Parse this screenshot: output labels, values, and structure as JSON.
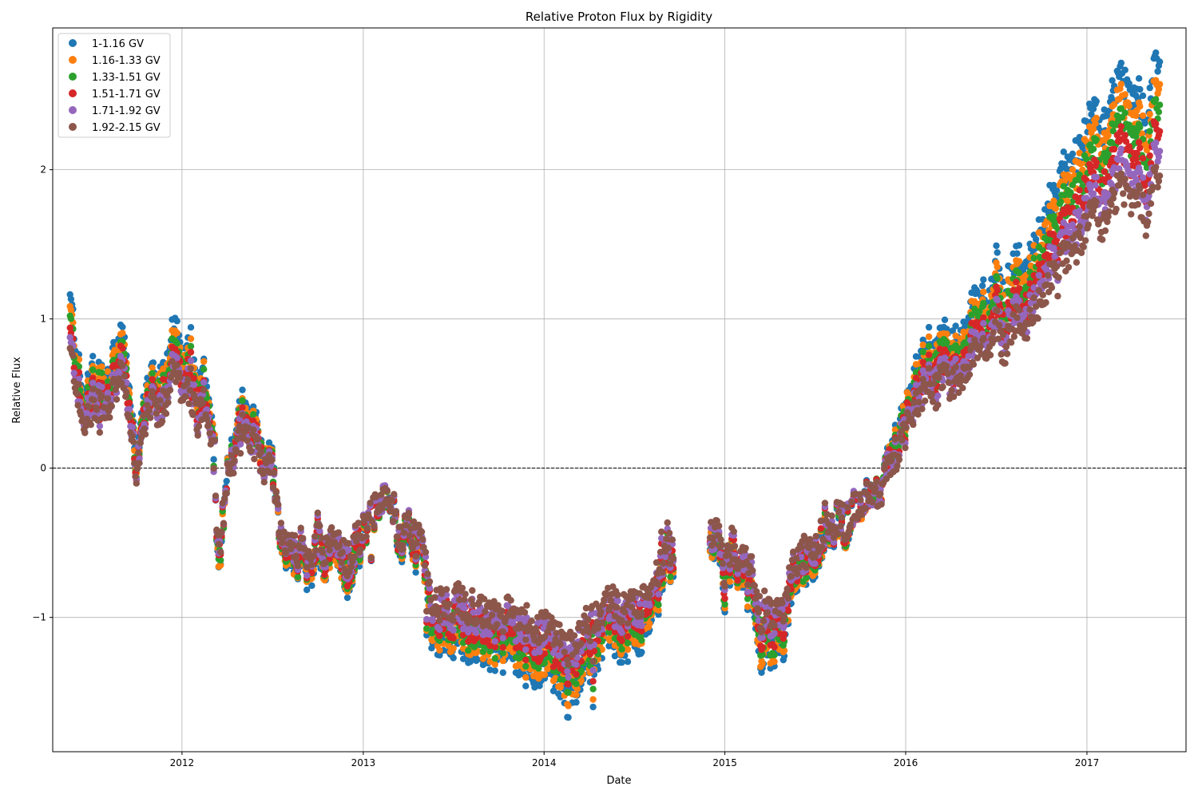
{
  "chart_data": {
    "type": "scatter",
    "title": "Relative Proton Flux by Rigidity",
    "xlabel": "Date",
    "ylabel": "Relative Flux",
    "x_axis": "date",
    "xlim": [
      "2011-04-15",
      "2017-07-20"
    ],
    "ylim": [
      -1.9,
      2.95
    ],
    "x_ticks": [
      "2012",
      "2013",
      "2014",
      "2015",
      "2016",
      "2017"
    ],
    "x_tick_dates": [
      "2012-01-01",
      "2013-01-01",
      "2014-01-01",
      "2015-01-01",
      "2016-01-01",
      "2017-01-01"
    ],
    "y_ticks": [
      -1,
      0,
      1,
      2
    ],
    "y_tick_labels": [
      "−1",
      "0",
      "1",
      "2"
    ],
    "grid": true,
    "reference_line": {
      "y": 0,
      "style": "dashed"
    },
    "legend_position": "top-left",
    "series": [
      {
        "name": "1-1.16 GV",
        "color": "#1f77b4",
        "offset": 0.04
      },
      {
        "name": "1.16-1.33 GV",
        "color": "#ff7f0e",
        "offset": 0.02
      },
      {
        "name": "1.33-1.51 GV",
        "color": "#2ca02c",
        "offset": 0.01
      },
      {
        "name": "1.51-1.71 GV",
        "color": "#d62728",
        "offset": -0.005
      },
      {
        "name": "1.71-1.92 GV",
        "color": "#9467bd",
        "offset": -0.015
      },
      {
        "name": "1.92-2.15 GV",
        "color": "#8c564b",
        "offset": -0.025
      }
    ],
    "common_trend": [
      [
        "2011-05-20",
        0.95
      ],
      [
        "2011-06-01",
        0.7
      ],
      [
        "2011-06-15",
        0.35
      ],
      [
        "2011-07-01",
        0.5
      ],
      [
        "2011-07-15",
        0.55
      ],
      [
        "2011-08-01",
        0.45
      ],
      [
        "2011-08-15",
        0.6
      ],
      [
        "2011-09-01",
        0.75
      ],
      [
        "2011-09-15",
        0.5
      ],
      [
        "2011-10-01",
        0.0
      ],
      [
        "2011-10-15",
        0.3
      ],
      [
        "2011-11-01",
        0.5
      ],
      [
        "2011-11-15",
        0.45
      ],
      [
        "2011-12-01",
        0.6
      ],
      [
        "2011-12-15",
        0.8
      ],
      [
        "2012-01-01",
        0.6
      ],
      [
        "2012-01-15",
        0.7
      ],
      [
        "2012-02-01",
        0.4
      ],
      [
        "2012-02-15",
        0.55
      ],
      [
        "2012-03-01",
        0.3
      ],
      [
        "2012-03-15",
        -0.7
      ],
      [
        "2012-04-01",
        0.0
      ],
      [
        "2012-04-15",
        0.1
      ],
      [
        "2012-05-01",
        0.35
      ],
      [
        "2012-05-15",
        0.3
      ],
      [
        "2012-06-01",
        0.2
      ],
      [
        "2012-06-15",
        0.0
      ],
      [
        "2012-07-01",
        0.05
      ],
      [
        "2012-07-15",
        -0.4
      ],
      [
        "2012-08-01",
        -0.6
      ],
      [
        "2012-08-15",
        -0.65
      ],
      [
        "2012-09-01",
        -0.55
      ],
      [
        "2012-09-15",
        -0.7
      ],
      [
        "2012-10-01",
        -0.5
      ],
      [
        "2012-10-15",
        -0.6
      ],
      [
        "2012-11-01",
        -0.55
      ],
      [
        "2012-11-15",
        -0.6
      ],
      [
        "2012-12-01",
        -0.7
      ],
      [
        "2012-12-15",
        -0.55
      ],
      [
        "2013-01-01",
        -0.45
      ],
      [
        "2013-01-15",
        -0.3
      ],
      [
        "2013-02-01",
        -0.3
      ],
      [
        "2013-02-15",
        -0.2
      ],
      [
        "2013-03-01",
        -0.25
      ],
      [
        "2013-03-15",
        -0.5
      ],
      [
        "2013-04-01",
        -0.4
      ],
      [
        "2013-04-15",
        -0.5
      ],
      [
        "2013-05-01",
        -0.55
      ],
      [
        "2013-05-15",
        -0.95
      ],
      [
        "2013-06-01",
        -1.05
      ],
      [
        "2013-06-15",
        -1.0
      ],
      [
        "2013-07-01",
        -1.05
      ],
      [
        "2013-07-15",
        -1.0
      ],
      [
        "2013-08-01",
        -1.1
      ],
      [
        "2013-08-15",
        -1.05
      ],
      [
        "2013-09-01",
        -1.15
      ],
      [
        "2013-09-15",
        -1.1
      ],
      [
        "2013-10-01",
        -1.15
      ],
      [
        "2013-10-15",
        -1.1
      ],
      [
        "2013-11-01",
        -1.15
      ],
      [
        "2013-11-15",
        -1.2
      ],
      [
        "2013-12-01",
        -1.2
      ],
      [
        "2013-12-15",
        -1.25
      ],
      [
        "2014-01-01",
        -1.2
      ],
      [
        "2014-01-15",
        -1.25
      ],
      [
        "2014-02-01",
        -1.3
      ],
      [
        "2014-02-15",
        -1.4
      ],
      [
        "2014-03-01",
        -1.35
      ],
      [
        "2014-03-15",
        -1.25
      ],
      [
        "2014-04-01",
        -1.2
      ],
      [
        "2014-04-15",
        -1.15
      ],
      [
        "2014-05-01",
        -1.05
      ],
      [
        "2014-05-15",
        -1.0
      ],
      [
        "2014-06-01",
        -1.05
      ],
      [
        "2014-06-15",
        -1.1
      ],
      [
        "2014-07-01",
        -1.0
      ],
      [
        "2014-07-15",
        -1.05
      ],
      [
        "2014-08-01",
        -0.95
      ],
      [
        "2014-08-15",
        -0.85
      ],
      [
        "2014-09-01",
        -0.65
      ],
      [
        "2014-09-12",
        -0.6
      ],
      [
        "2014-09-20",
        -0.7
      ],
      [
        "2014-12-01",
        -0.5
      ],
      [
        "2014-12-15",
        -0.45
      ],
      [
        "2015-01-01",
        -0.8
      ],
      [
        "2015-01-15",
        -0.55
      ],
      [
        "2015-02-01",
        -0.7
      ],
      [
        "2015-02-15",
        -0.75
      ],
      [
        "2015-03-01",
        -0.85
      ],
      [
        "2015-03-15",
        -1.15
      ],
      [
        "2015-04-01",
        -1.1
      ],
      [
        "2015-04-15",
        -1.15
      ],
      [
        "2015-05-01",
        -1.05
      ],
      [
        "2015-05-15",
        -0.8
      ],
      [
        "2015-06-01",
        -0.6
      ],
      [
        "2015-06-15",
        -0.65
      ],
      [
        "2015-07-01",
        -0.6
      ],
      [
        "2015-07-15",
        -0.5
      ],
      [
        "2015-08-01",
        -0.45
      ],
      [
        "2015-08-15",
        -0.35
      ],
      [
        "2015-09-01",
        -0.4
      ],
      [
        "2015-09-15",
        -0.3
      ],
      [
        "2015-10-01",
        -0.25
      ],
      [
        "2015-10-15",
        -0.2
      ],
      [
        "2015-11-01",
        -0.2
      ],
      [
        "2015-11-15",
        -0.1
      ],
      [
        "2015-12-01",
        0.05
      ],
      [
        "2015-12-15",
        0.15
      ],
      [
        "2016-01-01",
        0.3
      ],
      [
        "2016-01-15",
        0.45
      ],
      [
        "2016-02-01",
        0.6
      ],
      [
        "2016-02-15",
        0.7
      ],
      [
        "2016-03-01",
        0.6
      ],
      [
        "2016-03-15",
        0.75
      ],
      [
        "2016-04-01",
        0.65
      ],
      [
        "2016-04-15",
        0.7
      ],
      [
        "2016-05-01",
        0.8
      ],
      [
        "2016-05-15",
        0.95
      ],
      [
        "2016-06-01",
        1.05
      ],
      [
        "2016-06-15",
        0.9
      ],
      [
        "2016-07-01",
        1.2
      ],
      [
        "2016-07-15",
        0.95
      ],
      [
        "2016-08-01",
        1.1
      ],
      [
        "2016-08-15",
        1.2
      ],
      [
        "2016-09-01",
        1.1
      ],
      [
        "2016-09-15",
        1.3
      ],
      [
        "2016-10-01",
        1.35
      ],
      [
        "2016-10-15",
        1.5
      ],
      [
        "2016-11-01",
        1.55
      ],
      [
        "2016-11-15",
        1.7
      ],
      [
        "2016-12-01",
        1.75
      ],
      [
        "2016-12-15",
        1.8
      ],
      [
        "2017-01-01",
        1.95
      ],
      [
        "2017-01-15",
        2.05
      ],
      [
        "2017-02-01",
        1.95
      ],
      [
        "2017-02-15",
        2.1
      ],
      [
        "2017-03-01",
        2.2
      ],
      [
        "2017-03-15",
        2.25
      ],
      [
        "2017-04-01",
        2.05
      ],
      [
        "2017-04-15",
        2.15
      ],
      [
        "2017-05-01",
        1.9
      ],
      [
        "2017-05-15",
        2.3
      ],
      [
        "2017-05-28",
        2.35
      ]
    ]
  }
}
